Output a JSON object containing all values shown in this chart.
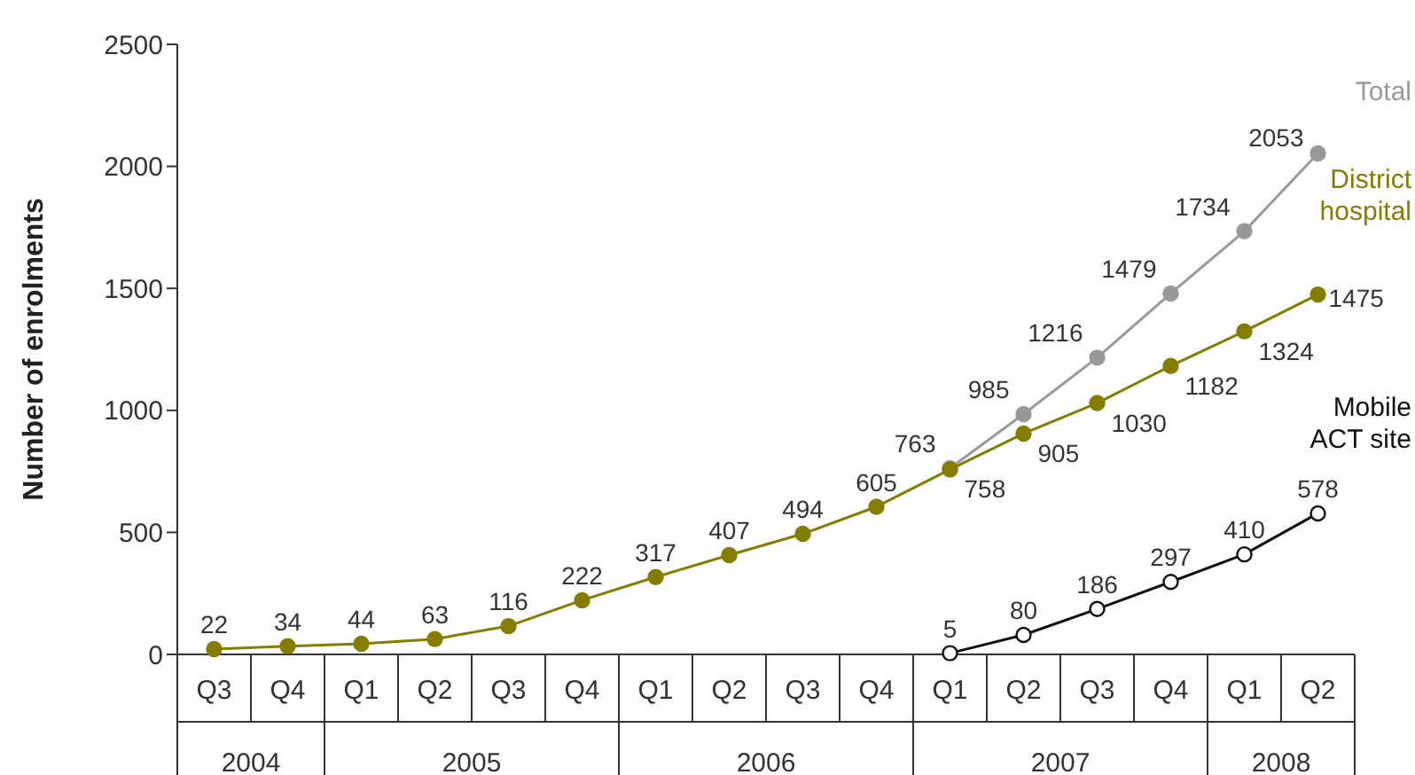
{
  "chart_data": {
    "type": "line",
    "ylabel": "Number of enrolments",
    "categories": [
      "Q3",
      "Q4",
      "Q1",
      "Q2",
      "Q3",
      "Q4",
      "Q1",
      "Q2",
      "Q3",
      "Q4",
      "Q1",
      "Q2",
      "Q3",
      "Q4",
      "Q1",
      "Q2"
    ],
    "annotations": [
      "2004",
      "2005",
      "2006",
      "2007",
      "2008"
    ],
    "series": [
      {
        "name": "Total",
        "color": "#999999",
        "values": [
          null,
          null,
          null,
          null,
          null,
          null,
          null,
          null,
          null,
          null,
          763,
          985,
          1216,
          1479,
          1734,
          2053
        ]
      },
      {
        "name": "District hospital",
        "color": "#857d00",
        "values": [
          22,
          34,
          44,
          63,
          116,
          222,
          317,
          407,
          494,
          605,
          758,
          905,
          1030,
          1182,
          1324,
          1475
        ]
      },
      {
        "name": "Mobile ACT site",
        "color": "#111111",
        "values": [
          null,
          null,
          null,
          null,
          null,
          null,
          null,
          null,
          null,
          null,
          5,
          80,
          186,
          297,
          410,
          578
        ]
      }
    ],
    "ylim": [
      0,
      2500
    ],
    "yticks": [
      0,
      500,
      1000,
      1500,
      2000,
      2500
    ],
    "grid": false,
    "marker": "circle",
    "data_labels": true
  }
}
